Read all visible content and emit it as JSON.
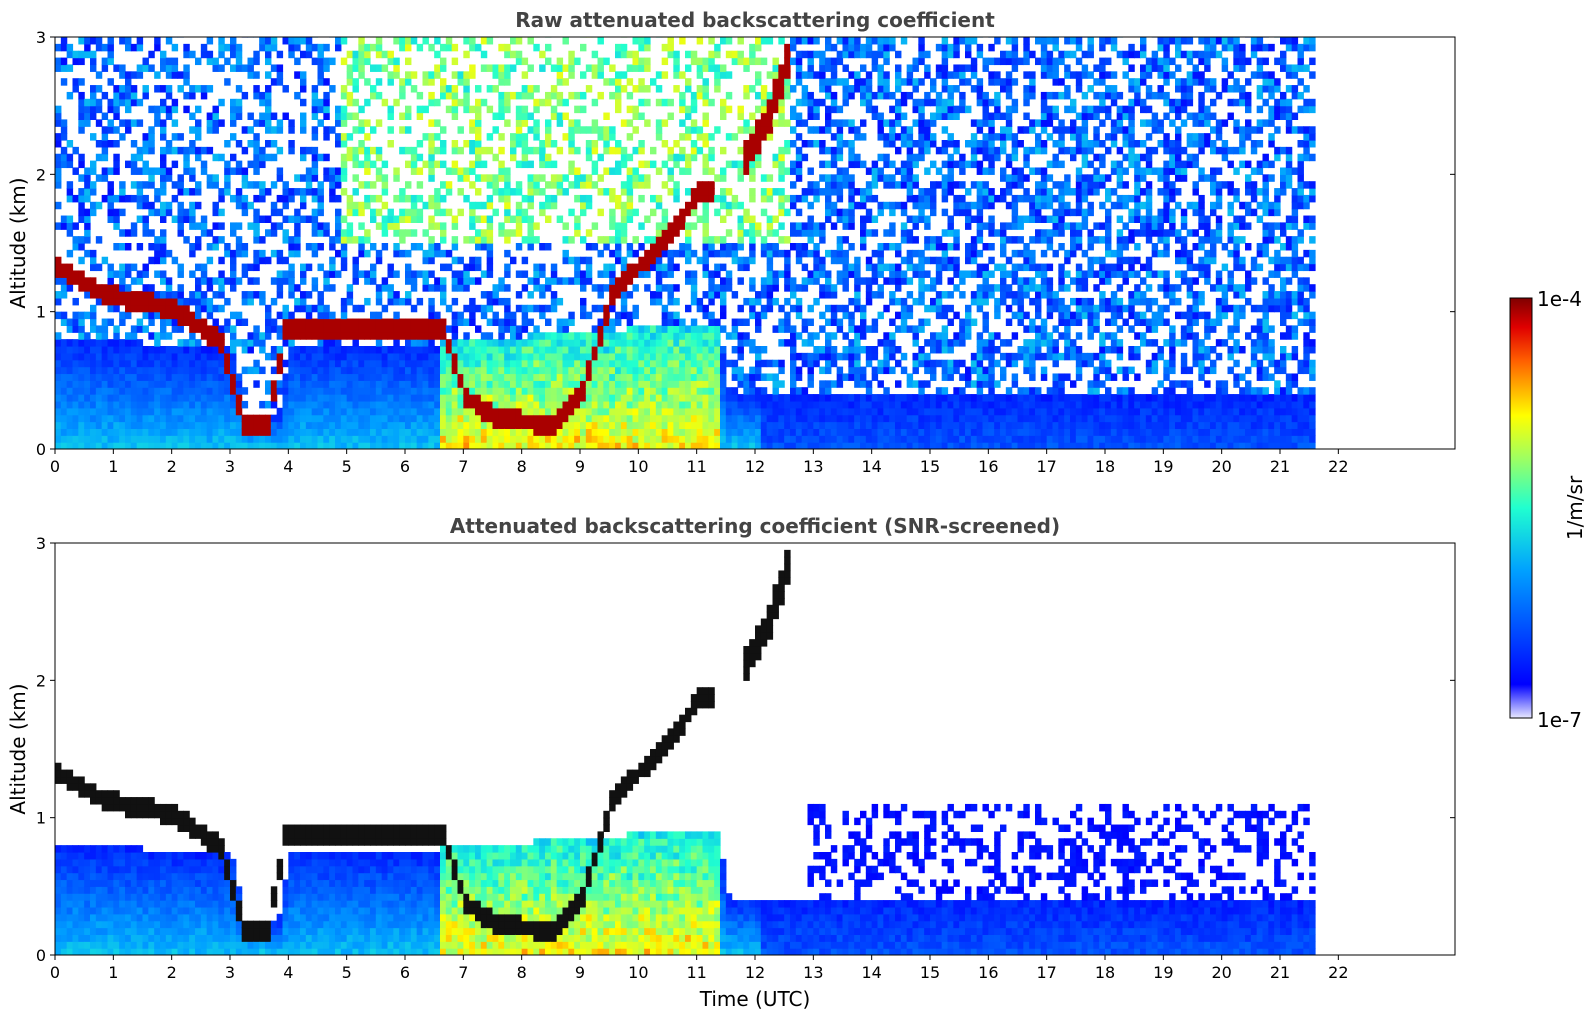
{
  "chart_data": [
    {
      "type": "heatmap",
      "title": "Raw attenuated backscattering coefficient",
      "xlabel": "",
      "ylabel": "Altitude (km)",
      "xlim": [
        0,
        24
      ],
      "ylim": [
        0,
        3
      ],
      "x_ticks": [
        "0",
        "1",
        "2",
        "3",
        "4",
        "5",
        "6",
        "7",
        "8",
        "9",
        "10",
        "11",
        "12",
        "13",
        "14",
        "15",
        "16",
        "17",
        "18",
        "19",
        "20",
        "21",
        "22"
      ],
      "y_ticks": [
        "0",
        "1",
        "2",
        "3"
      ],
      "data_extent_x": [
        0,
        21.6
      ],
      "screened": false,
      "features": {
        "boundary_layer_top_km": [
          [
            0,
            0.8
          ],
          [
            3,
            0.7
          ],
          [
            3.2,
            0.25
          ],
          [
            3.8,
            0.25
          ],
          [
            4,
            0.75
          ],
          [
            6.5,
            0.75
          ],
          [
            11.3,
            0.9
          ],
          [
            11.5,
            0.4
          ],
          [
            21.6,
            0.35
          ]
        ],
        "cloud_base_layer": [
          [
            0,
            1.3
          ],
          [
            0.8,
            1.1
          ],
          [
            2,
            1.0
          ],
          [
            2.8,
            0.75
          ],
          [
            3.2,
            0.15
          ],
          [
            3.6,
            0.15
          ],
          [
            3.9,
            0.85
          ],
          [
            4.5,
            0.85
          ],
          [
            6.6,
            0.85
          ],
          [
            7,
            0.35
          ],
          [
            7.5,
            0.2
          ],
          [
            8.5,
            0.15
          ],
          [
            9,
            0.4
          ],
          [
            9.5,
            1.1
          ],
          [
            10.5,
            1.55
          ],
          [
            11,
            1.85
          ]
        ],
        "upper_cloud_12h": [
          [
            11.8,
            2.1
          ],
          [
            12.2,
            2.4
          ],
          [
            12.5,
            2.8
          ]
        ],
        "high_noise_region_hours": [
          5,
          12.5
        ]
      }
    },
    {
      "type": "heatmap",
      "title": "Attenuated backscattering coefficient (SNR-screened)",
      "xlabel": "Time (UTC)",
      "ylabel": "Altitude (km)",
      "xlim": [
        0,
        24
      ],
      "ylim": [
        0,
        3
      ],
      "x_ticks": [
        "0",
        "1",
        "2",
        "3",
        "4",
        "5",
        "6",
        "7",
        "8",
        "9",
        "10",
        "11",
        "12",
        "13",
        "14",
        "15",
        "16",
        "17",
        "18",
        "19",
        "20",
        "21",
        "22"
      ],
      "y_ticks": [
        "0",
        "1",
        "2",
        "3"
      ],
      "data_extent_x": [
        0,
        21.6
      ],
      "screened": true
    }
  ],
  "colorbar": {
    "label": "1/m/sr",
    "max_label": "1e-4",
    "min_label": "1e-7",
    "colormap": "jet",
    "scale": "log"
  }
}
